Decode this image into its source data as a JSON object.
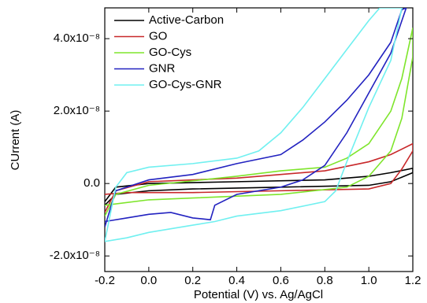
{
  "chart_data": {
    "type": "line",
    "xlabel": "Potential (V) vs. Ag/AgCl",
    "ylabel": "CUrrent (A)",
    "xlim": [
      -0.2,
      1.2
    ],
    "xticks": [
      -0.2,
      {
        "value": 0,
        "label": "0.0"
      },
      0.2,
      0.4,
      0.6,
      0.8,
      {
        "value": 1,
        "label": "1.0"
      },
      1.2
    ],
    "ylim": [
      -2.43e-08,
      4.85e-08
    ],
    "yticks": [
      {
        "value": -2e-08,
        "label": "-2.0x10⁻⁸"
      },
      {
        "value": 0,
        "label": "0.0"
      },
      {
        "value": 2e-08,
        "label": "2.0x10⁻⁸"
      },
      {
        "value": 4e-08,
        "label": "4.0x10⁻⁸"
      }
    ],
    "legend": "upper-left",
    "series": [
      {
        "name": "Active-Carbon",
        "color": "#000000",
        "x": [
          -0.2,
          -0.15,
          0,
          0.4,
          0.8,
          1.0,
          1.1,
          1.2,
          1.2,
          1.1,
          1.0,
          0.6,
          0.2,
          0,
          -0.15,
          -0.2
        ],
        "values": [
          -5e-09,
          -1e-09,
          0,
          5e-10,
          1e-09,
          2e-09,
          3e-09,
          4.2e-09,
          3e-09,
          5e-10,
          -5e-10,
          -1e-09,
          -1.5e-09,
          -2e-09,
          -3e-09,
          -6e-09
        ]
      },
      {
        "name": "GO",
        "color": "#c8282a",
        "x": [
          -0.2,
          -0.15,
          0,
          0.4,
          0.8,
          1.0,
          1.1,
          1.2,
          1.2,
          1.15,
          1.1,
          1.0,
          0.6,
          0.2,
          -0.1,
          -0.2
        ],
        "values": [
          -8e-09,
          -2e-09,
          5e-10,
          1.5e-09,
          3.5e-09,
          6e-09,
          8e-09,
          1.1e-08,
          9e-09,
          4e-09,
          0,
          -1.5e-09,
          -2e-09,
          -2.5e-09,
          -2.5e-09,
          -3e-09
        ]
      },
      {
        "name": "GO-Cys",
        "color": "#7ee52b",
        "x": [
          -0.2,
          -0.15,
          0,
          0.4,
          0.6,
          0.8,
          0.9,
          1.0,
          1.1,
          1.15,
          1.2,
          1.2,
          1.15,
          1.1,
          1.0,
          0.9,
          0.6,
          0.2,
          0,
          -0.2
        ],
        "values": [
          -9e-09,
          -3e-09,
          -5e-10,
          2e-09,
          3.5e-09,
          4.5e-09,
          7e-09,
          1.1e-08,
          2e-08,
          2.9e-08,
          4.3e-08,
          3.5e-08,
          1.8e-08,
          9e-09,
          2e-09,
          -1e-09,
          -3e-09,
          -4e-09,
          -4.5e-09,
          -6e-09
        ]
      },
      {
        "name": "GNR",
        "color": "#2222c0",
        "x": [
          -0.2,
          -0.15,
          0,
          0.2,
          0.4,
          0.6,
          0.7,
          0.8,
          0.9,
          1.0,
          1.1,
          1.15,
          1.17,
          1.1,
          1.0,
          0.9,
          0.8,
          0.7,
          0.6,
          0.4,
          0.3,
          0.28,
          0.2,
          0.1,
          0,
          -0.1,
          -0.2
        ],
        "values": [
          -1.2e-08,
          -2e-09,
          1e-09,
          2.5e-09,
          5.5e-09,
          8e-09,
          1.2e-08,
          1.7e-08,
          2.3e-08,
          3e-08,
          3.9e-08,
          4.8e-08,
          4.85e-08,
          3.6e-08,
          2.5e-08,
          1.4e-08,
          5e-09,
          1e-09,
          -1e-09,
          -3e-09,
          -6e-09,
          -1e-08,
          -9.5e-09,
          -8e-09,
          -8.5e-09,
          -9.5e-09,
          -1.05e-08
        ]
      },
      {
        "name": "GO-Cys-GNR",
        "color": "#70f0f0",
        "x": [
          -0.2,
          -0.15,
          -0.1,
          0,
          0.2,
          0.4,
          0.5,
          0.6,
          0.7,
          0.8,
          0.9,
          1.0,
          1.05,
          1.15,
          1.1,
          1.0,
          0.9,
          0.85,
          0.8,
          0.6,
          0.4,
          0.3,
          0.2,
          0,
          -0.1,
          -0.2
        ],
        "values": [
          -1.6e-08,
          -1e-09,
          3e-09,
          4.5e-09,
          5.5e-09,
          7e-09,
          9e-09,
          1.4e-08,
          2.1e-08,
          2.9e-08,
          3.7e-08,
          4.5e-08,
          4.85e-08,
          4.85e-08,
          3.4e-08,
          2.1e-08,
          6e-09,
          -2e-09,
          -5e-09,
          -7.5e-09,
          -9e-09,
          -1.05e-08,
          -1.15e-08,
          -1.35e-08,
          -1.5e-08,
          -1.6e-08
        ]
      }
    ]
  }
}
